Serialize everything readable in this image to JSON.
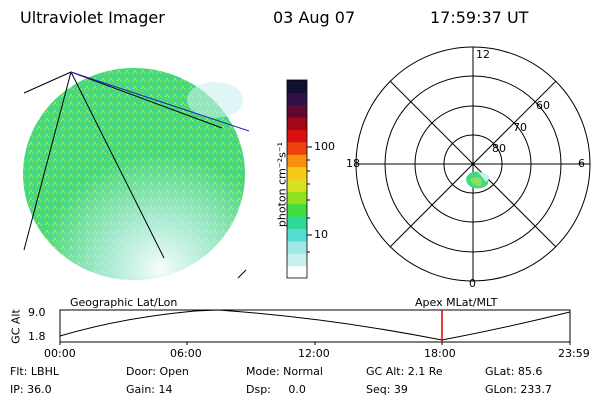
{
  "header": {
    "title": "Ultraviolet Imager",
    "date": "03 Aug 07",
    "time": "17:59:37 UT"
  },
  "colorbar": {
    "unit_label": "photon cm⁻²s⁻¹",
    "ticks": [
      "100",
      "10"
    ],
    "colors": [
      "#ffffff",
      "#c8f0f0",
      "#9ee8e8",
      "#55dcd0",
      "#30d898",
      "#40dc40",
      "#90e020",
      "#d8e020",
      "#f8c818",
      "#f89010",
      "#f04010",
      "#d81010",
      "#a00818",
      "#600830",
      "#301048",
      "#101030"
    ]
  },
  "polar": {
    "hour_labels": {
      "top": "12",
      "left": "18",
      "right": "6",
      "bottom": "0"
    },
    "lat_labels": [
      "60",
      "70",
      "80"
    ]
  },
  "timeline": {
    "ylabel": "GC Alt",
    "y_top": "9.0",
    "y_bottom": "1.8",
    "left_caption": "Geographic Lat/Lon",
    "right_caption": "Apex  MLat/MLT",
    "x_ticks": [
      "00:00",
      "06:00",
      "12:00",
      "18:00",
      "23:59"
    ],
    "marker_color": "#e00000"
  },
  "status": {
    "filter": "Flt: LBHL",
    "door": "Door: Open",
    "mode": "Mode: Normal",
    "gc_alt": "GC Alt: 2.1 Re",
    "glat": "GLat:  85.6",
    "ip": "IP: 36.0",
    "gain": "Gain: 14",
    "dsp": "Dsp:     0.0",
    "seq": "Seq: 39",
    "glon": "GLon: 233.7"
  }
}
